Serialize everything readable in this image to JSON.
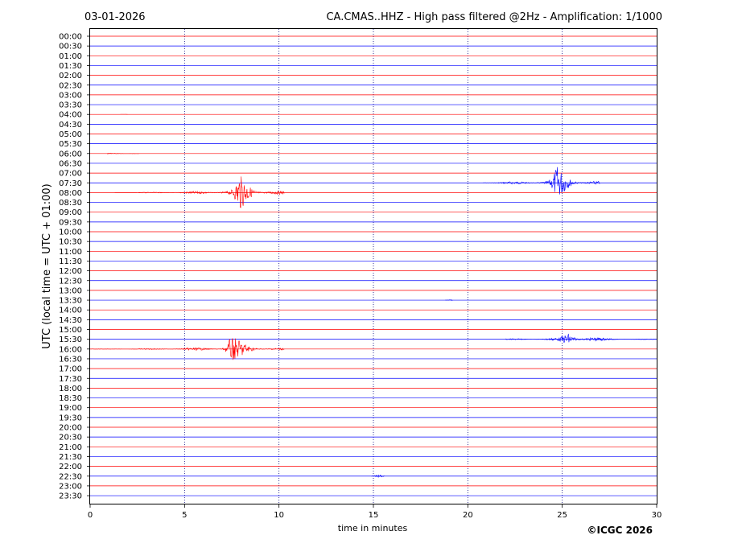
{
  "header": {
    "date": "03-01-2026",
    "title": "CA.CMAS..HHZ - High pass filtered @2Hz - Amplification: 1/1000"
  },
  "footer": {
    "copyright": "©ICGC 2026"
  },
  "colors": {
    "red_trace": "#ff0000",
    "blue_trace": "#0000ff",
    "grid": "#00007f",
    "frame": "#000000"
  },
  "chart_data": {
    "type": "line",
    "title": "CA.CMAS..HHZ - High pass filtered @2Hz - Amplification: 1/1000",
    "xlabel": "time in minutes",
    "ylabel": "UTC (local time = UTC + 01:00)",
    "xlim": [
      0,
      30
    ],
    "x_ticks": [
      0,
      5,
      10,
      15,
      20,
      25,
      30
    ],
    "vertical_grid_minutes": [
      5,
      10,
      15,
      20,
      25
    ],
    "grid_style": "dotted",
    "trace_colors_alternate": [
      "red",
      "blue"
    ],
    "rows": [
      "00:00",
      "00:30",
      "01:00",
      "01:30",
      "02:00",
      "02:30",
      "03:00",
      "03:30",
      "04:00",
      "04:30",
      "05:00",
      "05:30",
      "06:00",
      "06:30",
      "07:00",
      "07:30",
      "08:00",
      "08:30",
      "09:00",
      "09:30",
      "10:00",
      "10:30",
      "11:00",
      "11:30",
      "12:00",
      "12:30",
      "13:00",
      "13:30",
      "14:00",
      "14:30",
      "15:00",
      "15:30",
      "16:00",
      "16:30",
      "17:00",
      "17:30",
      "18:00",
      "18:30",
      "19:00",
      "19:30",
      "20:00",
      "20:30",
      "21:00",
      "21:30",
      "22:00",
      "22:30",
      "23:00",
      "23:30"
    ],
    "events": [
      {
        "row": "07:30",
        "color": "blue",
        "start_min": 20.8,
        "end_min": 27.0,
        "peak_min": 24.7,
        "peak_amplitude": 0.9
      },
      {
        "row": "08:00",
        "color": "red",
        "start_min": 1.3,
        "end_min": 10.3,
        "peak_min": 7.9,
        "peak_amplitude": 0.95
      },
      {
        "row": "15:30",
        "color": "blue",
        "start_min": 22.0,
        "end_min": 30.0,
        "peak_min": 25.3,
        "peak_amplitude": 0.55
      },
      {
        "row": "16:00",
        "color": "red",
        "start_min": 0.0,
        "end_min": 10.3,
        "peak_min": 7.4,
        "peak_amplitude": 0.8
      },
      {
        "row": "13:30",
        "color": "blue",
        "start_min": 18.8,
        "end_min": 19.2,
        "peak_min": 19.0,
        "peak_amplitude": 0.08
      },
      {
        "row": "22:30",
        "color": "blue",
        "start_min": 14.9,
        "end_min": 15.6,
        "peak_min": 15.3,
        "peak_amplitude": 0.08
      },
      {
        "row": "06:00",
        "color": "red",
        "start_min": 0.9,
        "end_min": 2.6,
        "peak_min": 1.1,
        "peak_amplitude": 0.04
      },
      {
        "row": "04:00",
        "color": "red",
        "start_min": 1.6,
        "end_min": 2.0,
        "peak_min": 1.9,
        "peak_amplitude": 0.03
      }
    ]
  }
}
